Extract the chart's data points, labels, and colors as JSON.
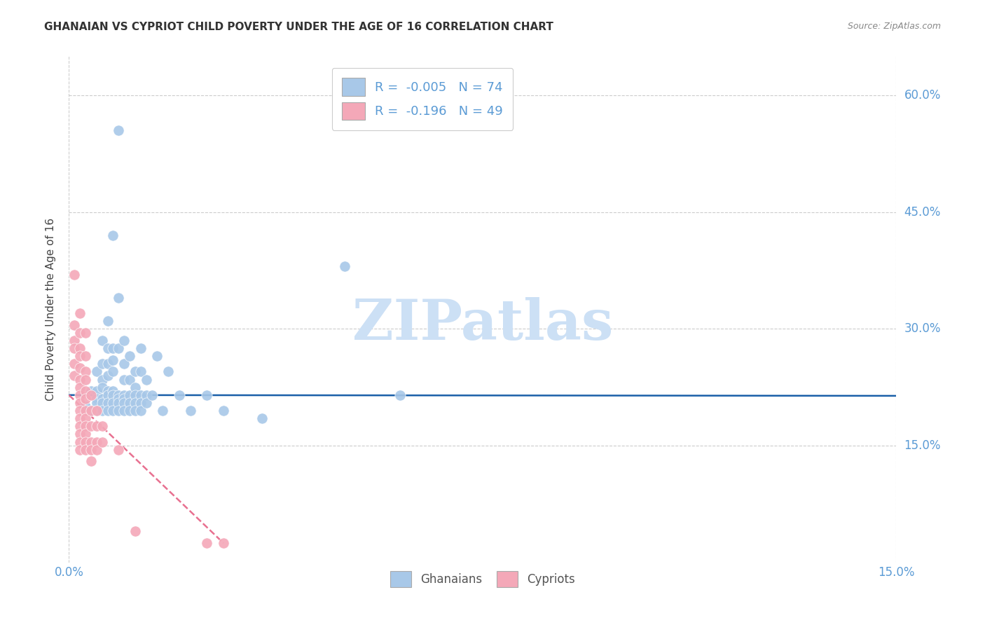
{
  "title": "GHANAIAN VS CYPRIOT CHILD POVERTY UNDER THE AGE OF 16 CORRELATION CHART",
  "source": "Source: ZipAtlas.com",
  "ylabel": "Child Poverty Under the Age of 16",
  "xlim": [
    0.0,
    0.15
  ],
  "ylim": [
    0.0,
    0.65
  ],
  "xtick_positions": [
    0.0,
    0.15
  ],
  "xtick_labels": [
    "0.0%",
    "15.0%"
  ],
  "ytick_positions": [
    0.15,
    0.3,
    0.45,
    0.6
  ],
  "ytick_labels": [
    "15.0%",
    "30.0%",
    "45.0%",
    "60.0%"
  ],
  "background_color": "#ffffff",
  "grid_color": "#cccccc",
  "axis_color": "#5b9bd5",
  "watermark_text": "ZIPatlas",
  "watermark_color": "#cce0f5",
  "legend_R_ghana": "-0.005",
  "legend_N_ghana": "74",
  "legend_R_cypriot": "-0.196",
  "legend_N_cypriot": "49",
  "ghana_color": "#a8c8e8",
  "cypriot_color": "#f4a8b8",
  "trend_ghana_color": "#1a5fa8",
  "trend_cypriot_color": "#e87090",
  "ghana_points": [
    [
      0.003,
      0.2
    ],
    [
      0.004,
      0.22
    ],
    [
      0.004,
      0.195
    ],
    [
      0.005,
      0.245
    ],
    [
      0.005,
      0.22
    ],
    [
      0.005,
      0.21
    ],
    [
      0.005,
      0.205
    ],
    [
      0.005,
      0.195
    ],
    [
      0.006,
      0.285
    ],
    [
      0.006,
      0.255
    ],
    [
      0.006,
      0.235
    ],
    [
      0.006,
      0.225
    ],
    [
      0.006,
      0.21
    ],
    [
      0.006,
      0.205
    ],
    [
      0.006,
      0.195
    ],
    [
      0.007,
      0.31
    ],
    [
      0.007,
      0.275
    ],
    [
      0.007,
      0.255
    ],
    [
      0.007,
      0.24
    ],
    [
      0.007,
      0.22
    ],
    [
      0.007,
      0.215
    ],
    [
      0.007,
      0.205
    ],
    [
      0.007,
      0.195
    ],
    [
      0.008,
      0.42
    ],
    [
      0.008,
      0.275
    ],
    [
      0.008,
      0.26
    ],
    [
      0.008,
      0.245
    ],
    [
      0.008,
      0.22
    ],
    [
      0.008,
      0.215
    ],
    [
      0.008,
      0.205
    ],
    [
      0.008,
      0.195
    ],
    [
      0.009,
      0.555
    ],
    [
      0.009,
      0.34
    ],
    [
      0.009,
      0.275
    ],
    [
      0.009,
      0.215
    ],
    [
      0.009,
      0.21
    ],
    [
      0.009,
      0.205
    ],
    [
      0.009,
      0.195
    ],
    [
      0.01,
      0.285
    ],
    [
      0.01,
      0.255
    ],
    [
      0.01,
      0.235
    ],
    [
      0.01,
      0.215
    ],
    [
      0.01,
      0.21
    ],
    [
      0.01,
      0.205
    ],
    [
      0.01,
      0.195
    ],
    [
      0.011,
      0.265
    ],
    [
      0.011,
      0.235
    ],
    [
      0.011,
      0.215
    ],
    [
      0.011,
      0.205
    ],
    [
      0.011,
      0.195
    ],
    [
      0.012,
      0.245
    ],
    [
      0.012,
      0.225
    ],
    [
      0.012,
      0.215
    ],
    [
      0.012,
      0.205
    ],
    [
      0.012,
      0.195
    ],
    [
      0.013,
      0.275
    ],
    [
      0.013,
      0.245
    ],
    [
      0.013,
      0.215
    ],
    [
      0.013,
      0.205
    ],
    [
      0.013,
      0.195
    ],
    [
      0.014,
      0.235
    ],
    [
      0.014,
      0.215
    ],
    [
      0.014,
      0.205
    ],
    [
      0.015,
      0.215
    ],
    [
      0.016,
      0.265
    ],
    [
      0.017,
      0.195
    ],
    [
      0.018,
      0.245
    ],
    [
      0.02,
      0.215
    ],
    [
      0.022,
      0.195
    ],
    [
      0.025,
      0.215
    ],
    [
      0.028,
      0.195
    ],
    [
      0.035,
      0.185
    ],
    [
      0.05,
      0.38
    ],
    [
      0.06,
      0.215
    ]
  ],
  "cypriot_points": [
    [
      0.001,
      0.37
    ],
    [
      0.001,
      0.305
    ],
    [
      0.001,
      0.285
    ],
    [
      0.001,
      0.275
    ],
    [
      0.001,
      0.255
    ],
    [
      0.001,
      0.24
    ],
    [
      0.002,
      0.32
    ],
    [
      0.002,
      0.295
    ],
    [
      0.002,
      0.275
    ],
    [
      0.002,
      0.265
    ],
    [
      0.002,
      0.25
    ],
    [
      0.002,
      0.235
    ],
    [
      0.002,
      0.225
    ],
    [
      0.002,
      0.215
    ],
    [
      0.002,
      0.205
    ],
    [
      0.002,
      0.195
    ],
    [
      0.002,
      0.185
    ],
    [
      0.002,
      0.175
    ],
    [
      0.002,
      0.165
    ],
    [
      0.002,
      0.155
    ],
    [
      0.002,
      0.145
    ],
    [
      0.003,
      0.295
    ],
    [
      0.003,
      0.265
    ],
    [
      0.003,
      0.245
    ],
    [
      0.003,
      0.235
    ],
    [
      0.003,
      0.22
    ],
    [
      0.003,
      0.21
    ],
    [
      0.003,
      0.195
    ],
    [
      0.003,
      0.185
    ],
    [
      0.003,
      0.175
    ],
    [
      0.003,
      0.165
    ],
    [
      0.003,
      0.155
    ],
    [
      0.003,
      0.145
    ],
    [
      0.004,
      0.215
    ],
    [
      0.004,
      0.195
    ],
    [
      0.004,
      0.175
    ],
    [
      0.004,
      0.155
    ],
    [
      0.004,
      0.145
    ],
    [
      0.004,
      0.13
    ],
    [
      0.005,
      0.195
    ],
    [
      0.005,
      0.175
    ],
    [
      0.005,
      0.155
    ],
    [
      0.005,
      0.145
    ],
    [
      0.006,
      0.175
    ],
    [
      0.006,
      0.155
    ],
    [
      0.009,
      0.145
    ],
    [
      0.012,
      0.04
    ],
    [
      0.025,
      0.025
    ],
    [
      0.028,
      0.025
    ]
  ],
  "ghana_trend_x": [
    0.0,
    0.15
  ],
  "ghana_trend_y": [
    0.215,
    0.214
  ],
  "cypriot_trend_x": [
    0.0,
    0.028
  ],
  "cypriot_trend_y": [
    0.215,
    0.025
  ]
}
